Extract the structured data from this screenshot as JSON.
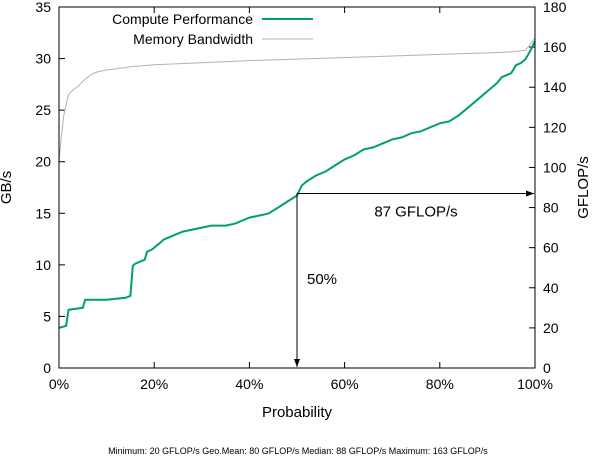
{
  "chart_data": {
    "type": "line",
    "xlabel": "Probability",
    "ylabel": "GB/s",
    "y2label": "GFLOP/s",
    "xlim": [
      0,
      100
    ],
    "ylim": [
      0,
      35
    ],
    "y2lim": [
      0,
      180
    ],
    "x_ticks": [
      "0%",
      "20%",
      "40%",
      "60%",
      "80%",
      "100%"
    ],
    "y_ticks": [
      "0",
      "5",
      "10",
      "15",
      "20",
      "25",
      "30",
      "35"
    ],
    "y2_ticks": [
      "0",
      "20",
      "40",
      "60",
      "80",
      "100",
      "120",
      "140",
      "160",
      "180"
    ],
    "legend_position": "top-left",
    "series": [
      {
        "name": "Compute Performance",
        "axis": "y2",
        "color": "#009e73",
        "x": [
          0,
          1.5,
          2,
          5,
          5.5,
          10,
          14,
          15,
          15.5,
          16,
          18,
          18.5,
          19.5,
          21,
          22,
          23,
          24,
          26,
          28,
          30,
          32,
          35,
          37,
          38,
          40,
          42,
          44,
          46,
          48,
          50,
          51,
          52,
          54,
          56,
          58,
          60,
          62,
          64,
          66,
          68,
          70,
          72,
          74,
          76,
          78,
          80,
          82,
          84,
          86,
          88,
          90,
          92,
          93,
          94,
          95,
          96,
          97,
          98,
          99,
          100
        ],
        "y": [
          20,
          21,
          29,
          30,
          34,
          34,
          35,
          36,
          51,
          52,
          54,
          58,
          59,
          62,
          64,
          65,
          66,
          68,
          69,
          70,
          71,
          71,
          72,
          73,
          75,
          76,
          77,
          80,
          83,
          86,
          91,
          93,
          96,
          98,
          101,
          104,
          106,
          109,
          110,
          112,
          114,
          115,
          117,
          118,
          120,
          122,
          123,
          126,
          130,
          134,
          138,
          142,
          145,
          146,
          147,
          151,
          152,
          154,
          158,
          163
        ]
      },
      {
        "name": "Memory Bandwidth",
        "axis": "y",
        "color": "#b3b3b3",
        "x": [
          0,
          0.5,
          1,
          1.5,
          2,
          3,
          4,
          5,
          6,
          7,
          8,
          10,
          12,
          15,
          20,
          25,
          30,
          40,
          50,
          60,
          70,
          80,
          90,
          95,
          98,
          100
        ],
        "y": [
          20,
          22.5,
          24.5,
          25.5,
          26.5,
          27,
          27.3,
          27.8,
          28.2,
          28.5,
          28.7,
          28.9,
          29.0,
          29.2,
          29.4,
          29.5,
          29.6,
          29.8,
          29.95,
          30.1,
          30.25,
          30.4,
          30.55,
          30.65,
          30.8,
          32
        ]
      }
    ],
    "annotations": [
      {
        "text": "87 GFLOP/s",
        "value": 87,
        "axis": "y2"
      },
      {
        "text": "50%",
        "value": 50,
        "axis": "x"
      }
    ]
  },
  "footer": {
    "text": "Minimum: 20 GFLOP/s  Geo.Mean: 80 GFLOP/s  Median: 88 GFLOP/s  Maximum: 163 GFLOP/s"
  }
}
